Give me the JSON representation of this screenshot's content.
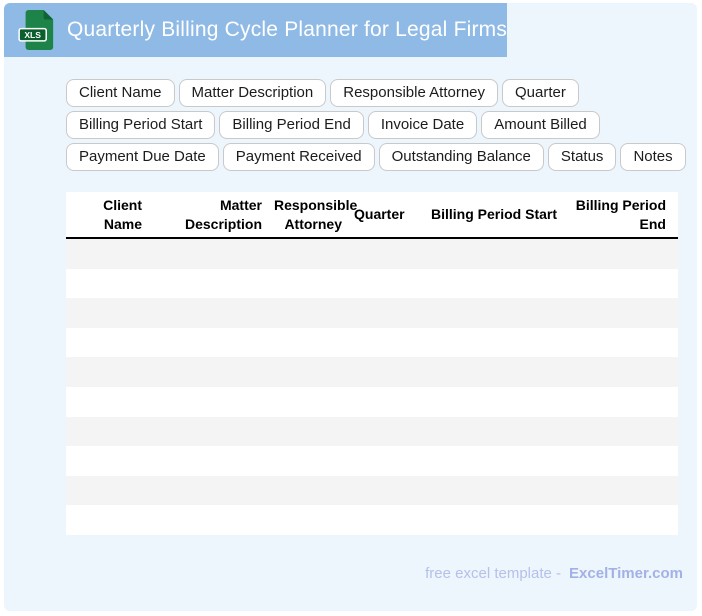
{
  "header": {
    "title": "Quarterly Billing Cycle Planner for Legal Firms",
    "file_badge": "XLS"
  },
  "tags": {
    "rows": [
      [
        "Client Name",
        "Matter Description",
        "Responsible Attorney",
        "Quarter"
      ],
      [
        "Billing Period Start",
        "Billing Period End",
        "Invoice Date",
        "Amount Billed"
      ],
      [
        "Payment Due Date",
        "Payment Received",
        "Outstanding Balance",
        "Status",
        "Notes"
      ]
    ]
  },
  "table": {
    "columns": [
      "Client Name",
      "Matter Description",
      "Responsible Attorney",
      "Quarter",
      "Billing Period Start",
      "Billing Period End"
    ],
    "empty_row_count": 10
  },
  "footer": {
    "text": "free excel template -",
    "brand": "ExcelTimer.com"
  },
  "colors": {
    "banner-bg": "#8fbae6",
    "page-bg": "#edf5fd",
    "chip-bg": "#ffffff",
    "chip-border": "#c9c9c9",
    "chip-text": "#1c1c1c",
    "table-bg": "#ffffff",
    "stripe": "#f4f4f4",
    "header-text": "#000000",
    "divider": "#000000",
    "title-text": "#ffffff",
    "footer-text": "#b5c1ea",
    "brand-text": "#a2b2e6",
    "icon-body": "#1d8348",
    "icon-fold": "#0e6434",
    "icon-badge": "#0b5e2d"
  }
}
